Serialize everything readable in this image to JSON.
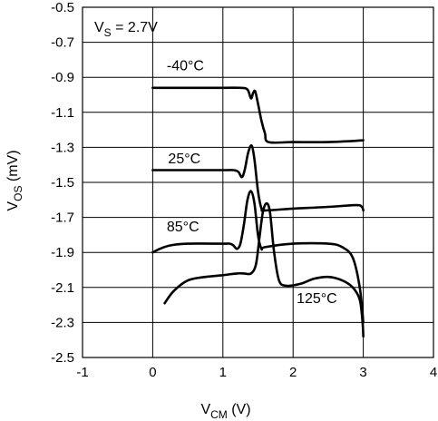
{
  "chart_data": {
    "type": "line",
    "title": "",
    "xlabel_main": "V",
    "xlabel_sub": "CM",
    "xlabel_unit": " (V)",
    "ylabel_main": "V",
    "ylabel_sub": "OS",
    "ylabel_unit": " (mV)",
    "xlim": [
      -1,
      4
    ],
    "ylim": [
      -2.5,
      -0.5
    ],
    "xticks": [
      -1,
      0,
      1,
      2,
      3,
      4
    ],
    "yticks": [
      -0.5,
      -0.7,
      -0.9,
      -1.1,
      -1.3,
      -1.5,
      -1.7,
      -1.9,
      -2.1,
      -2.3,
      -2.5
    ],
    "grid": true,
    "annotation": {
      "main": "V",
      "sub": "S",
      "rest": " = 2.7V"
    },
    "series": [
      {
        "name": "-40°C",
        "points": [
          [
            0,
            -0.96
          ],
          [
            0.5,
            -0.96
          ],
          [
            1.0,
            -0.96
          ],
          [
            1.25,
            -0.96
          ],
          [
            1.35,
            -0.97
          ],
          [
            1.4,
            -1.02
          ],
          [
            1.43,
            -0.99
          ],
          [
            1.46,
            -0.98
          ],
          [
            1.5,
            -1.05
          ],
          [
            1.55,
            -1.15
          ],
          [
            1.6,
            -1.22
          ],
          [
            1.65,
            -1.27
          ],
          [
            2.0,
            -1.27
          ],
          [
            2.5,
            -1.27
          ],
          [
            3.0,
            -1.26
          ]
        ]
      },
      {
        "name": "25°C",
        "points": [
          [
            0,
            -1.43
          ],
          [
            0.5,
            -1.43
          ],
          [
            1.0,
            -1.43
          ],
          [
            1.15,
            -1.43
          ],
          [
            1.22,
            -1.44
          ],
          [
            1.27,
            -1.47
          ],
          [
            1.31,
            -1.43
          ],
          [
            1.36,
            -1.33
          ],
          [
            1.41,
            -1.29
          ],
          [
            1.45,
            -1.37
          ],
          [
            1.5,
            -1.55
          ],
          [
            1.55,
            -1.65
          ],
          [
            1.6,
            -1.66
          ],
          [
            2.0,
            -1.65
          ],
          [
            2.5,
            -1.64
          ],
          [
            2.9,
            -1.63
          ],
          [
            2.98,
            -1.64
          ],
          [
            3.0,
            -1.66
          ]
        ]
      },
      {
        "name": "85°C",
        "points": [
          [
            0,
            -1.9
          ],
          [
            0.1,
            -1.88
          ],
          [
            0.25,
            -1.86
          ],
          [
            0.5,
            -1.85
          ],
          [
            1.0,
            -1.85
          ],
          [
            1.1,
            -1.85
          ],
          [
            1.15,
            -1.86
          ],
          [
            1.2,
            -1.88
          ],
          [
            1.25,
            -1.85
          ],
          [
            1.3,
            -1.74
          ],
          [
            1.35,
            -1.6
          ],
          [
            1.4,
            -1.55
          ],
          [
            1.45,
            -1.62
          ],
          [
            1.5,
            -1.8
          ],
          [
            1.55,
            -1.88
          ],
          [
            1.6,
            -1.87
          ],
          [
            2.0,
            -1.85
          ],
          [
            2.5,
            -1.85
          ],
          [
            2.7,
            -1.87
          ],
          [
            2.85,
            -1.93
          ],
          [
            2.95,
            -2.1
          ],
          [
            3.0,
            -2.3
          ]
        ]
      },
      {
        "name": "125°C",
        "points": [
          [
            0.17,
            -2.19
          ],
          [
            0.3,
            -2.12
          ],
          [
            0.5,
            -2.06
          ],
          [
            0.75,
            -2.04
          ],
          [
            1.0,
            -2.03
          ],
          [
            1.2,
            -2.02
          ],
          [
            1.3,
            -2.02
          ],
          [
            1.4,
            -2.02
          ],
          [
            1.47,
            -1.97
          ],
          [
            1.52,
            -1.82
          ],
          [
            1.57,
            -1.67
          ],
          [
            1.62,
            -1.62
          ],
          [
            1.67,
            -1.67
          ],
          [
            1.73,
            -1.9
          ],
          [
            1.8,
            -2.06
          ],
          [
            1.9,
            -2.09
          ],
          [
            2.1,
            -2.08
          ],
          [
            2.3,
            -2.05
          ],
          [
            2.5,
            -2.04
          ],
          [
            2.7,
            -2.06
          ],
          [
            2.85,
            -2.1
          ],
          [
            2.95,
            -2.17
          ],
          [
            2.99,
            -2.3
          ],
          [
            3.0,
            -2.38
          ]
        ]
      }
    ],
    "series_labels": [
      {
        "name": "-40°C",
        "at": [
          0.2,
          -0.86
        ]
      },
      {
        "name": "25°C",
        "at": [
          0.22,
          -1.39
        ]
      },
      {
        "name": "85°C",
        "at": [
          0.2,
          -1.78
        ]
      },
      {
        "name": "125°C",
        "at": [
          2.05,
          -2.19
        ]
      }
    ]
  }
}
